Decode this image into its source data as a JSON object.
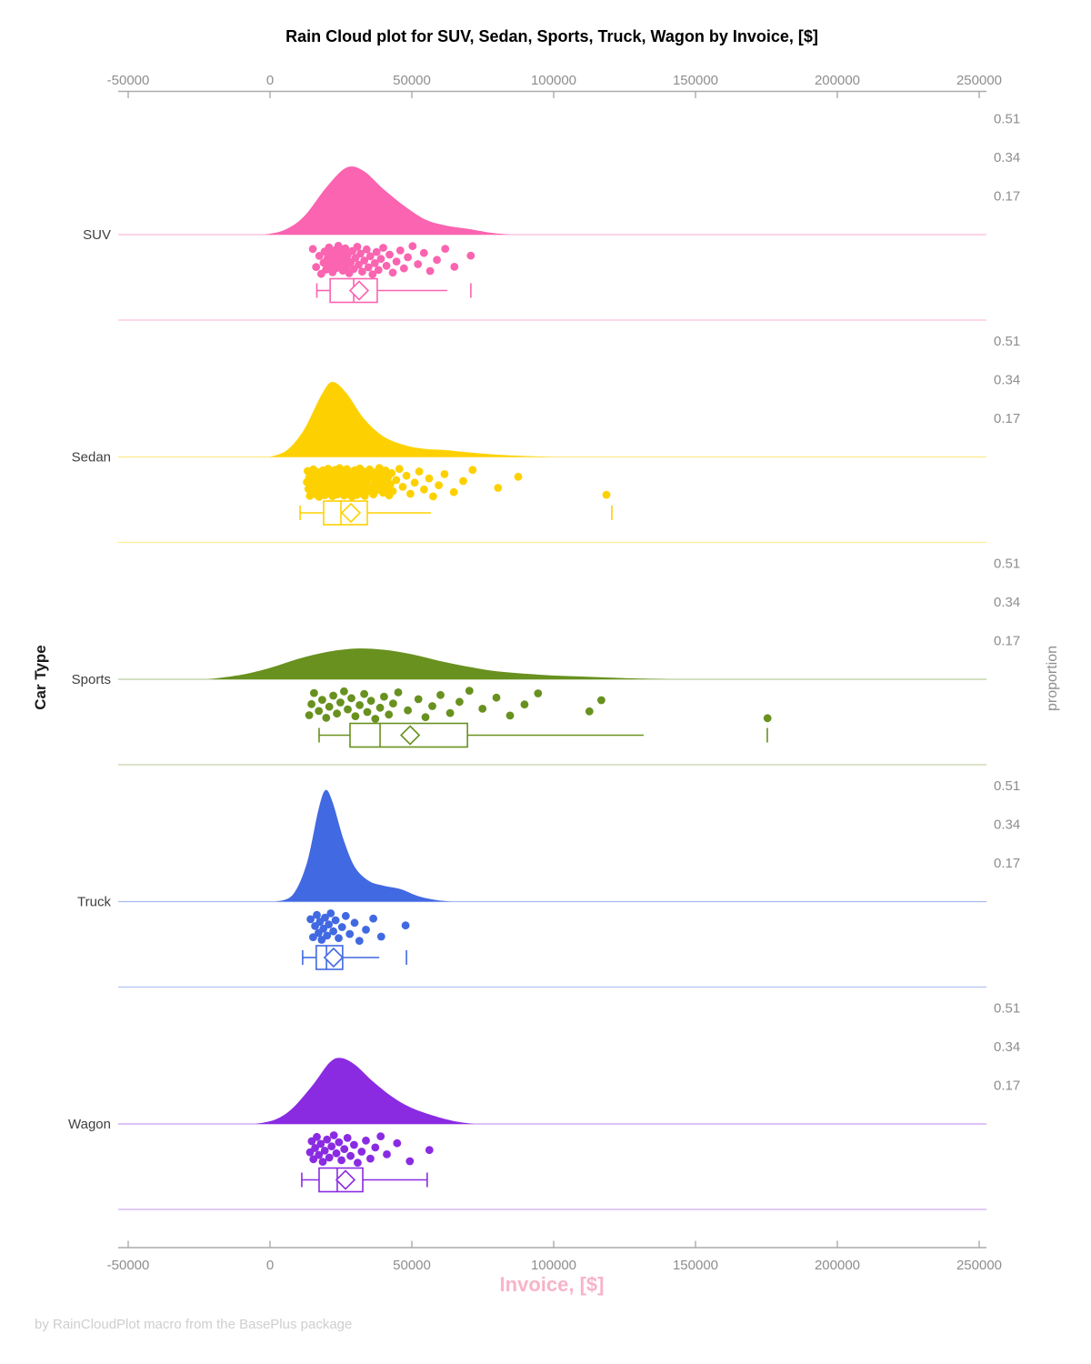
{
  "title": "Rain Cloud plot for SUV, Sedan, Sports, Truck, Wagon by Invoice, [$]",
  "credit": "by RainCloudPlot macro from the BasePlus package",
  "x_axis": {
    "label": "Invoice, [$]",
    "ticks": [
      -50000,
      0,
      50000,
      100000,
      150000,
      200000,
      250000
    ],
    "tick_labels": [
      "-50000",
      "0",
      "50000",
      "100000",
      "150000",
      "200000",
      "250000"
    ],
    "range": [
      -53500,
      252600
    ]
  },
  "y_axis_left": {
    "label": "Car Type",
    "categories": [
      "SUV",
      "Sedan",
      "Sports",
      "Truck",
      "Wagon"
    ]
  },
  "y_axis_right": {
    "label": "proportion",
    "ticks": [
      0.17,
      0.34,
      0.51
    ],
    "tick_labels": [
      "0.17",
      "0.34",
      "0.51"
    ]
  },
  "palette": {
    "axis_line": "#ababab",
    "tick_text": "#8e8e8e",
    "category_label_text": "#3f3f3f",
    "title_text": "#000000",
    "x_title_text": "#f8b3c8",
    "credit_text": "#cecece"
  },
  "chart_data": {
    "type": "raincloud",
    "orientation": "horizontal",
    "x_variable": "Invoice, [$]",
    "group_variable": "Car Type",
    "proportion_ticks": [
      0.17,
      0.34,
      0.51
    ],
    "series": [
      {
        "name": "SUV",
        "color": "#fa64b0",
        "density": [
          [
            -2000,
            0
          ],
          [
            5000,
            0.02
          ],
          [
            12000,
            0.08
          ],
          [
            20000,
            0.21
          ],
          [
            27000,
            0.295
          ],
          [
            33000,
            0.28
          ],
          [
            40000,
            0.2
          ],
          [
            48000,
            0.12
          ],
          [
            55000,
            0.065
          ],
          [
            62000,
            0.04
          ],
          [
            70000,
            0.025
          ],
          [
            78000,
            0.008
          ],
          [
            85000,
            0
          ]
        ],
        "points": [
          15085,
          16245,
          17357,
          18035,
          18890,
          19235,
          19755,
          20255,
          20815,
          21175,
          21575,
          22045,
          22575,
          23215,
          23515,
          23845,
          24095,
          24555,
          25085,
          25672,
          26155,
          26545,
          26985,
          27345,
          27905,
          28455,
          29045,
          29535,
          30125,
          30755,
          31245,
          31895,
          32505,
          33245,
          34055,
          34725,
          35345,
          36145,
          36945,
          37575,
          38245,
          39080,
          39905,
          41045,
          42135,
          43255,
          44595,
          45935,
          47205,
          48595,
          50255,
          52155,
          54255,
          56455,
          58855,
          61755,
          64995,
          70755
        ],
        "box": {
          "whisker_low": 16500,
          "q1": 21200,
          "median": 29500,
          "mean": 31400,
          "q3": 37800,
          "whisker_high": 62500,
          "far_tick": 70800,
          "high_cap": false
        }
      },
      {
        "name": "Sedan",
        "color": "#fdd101",
        "density": [
          [
            0,
            0
          ],
          [
            6000,
            0.03
          ],
          [
            12000,
            0.12
          ],
          [
            18000,
            0.27
          ],
          [
            22000,
            0.33
          ],
          [
            27000,
            0.28
          ],
          [
            33000,
            0.17
          ],
          [
            40000,
            0.09
          ],
          [
            48000,
            0.05
          ],
          [
            55000,
            0.035
          ],
          [
            62000,
            0.03
          ],
          [
            70000,
            0.02
          ],
          [
            80000,
            0.01
          ],
          [
            90000,
            0.004
          ],
          [
            100000,
            0
          ]
        ],
        "points": [
          13024,
          13276,
          13529,
          13781,
          14034,
          14286,
          14539,
          14791,
          15044,
          15296,
          15549,
          15801,
          16054,
          16306,
          16559,
          16811,
          17064,
          17316,
          17569,
          17821,
          18074,
          18326,
          18579,
          18831,
          19084,
          19336,
          19589,
          19841,
          20094,
          20287,
          20481,
          20674,
          20868,
          21061,
          21255,
          21448,
          21642,
          21835,
          22029,
          22222,
          22416,
          22609,
          22803,
          22996,
          23190,
          23383,
          23577,
          23770,
          23964,
          24157,
          24351,
          24544,
          24738,
          24931,
          25125,
          25318,
          25512,
          25705,
          25899,
          26092,
          26286,
          26479,
          26673,
          26866,
          27060,
          27253,
          27447,
          27640,
          28034,
          28248,
          28463,
          28677,
          28892,
          29106,
          29321,
          29535,
          29750,
          29964,
          30179,
          30393,
          30608,
          30822,
          31037,
          31251,
          31466,
          31680,
          31895,
          32109,
          32324,
          32538,
          32753,
          32967,
          33182,
          33396,
          33611,
          33825,
          34040,
          34254,
          35142,
          35571,
          36000,
          36428,
          36857,
          37285,
          37714,
          38142,
          38571,
          38999,
          39428,
          39856,
          40285,
          40713,
          41142,
          41570,
          41999,
          42427,
          42856,
          43284,
          44500,
          45600,
          46800,
          48100,
          49500,
          51000,
          52600,
          54300,
          56100,
          57500,
          59500,
          61500,
          64800,
          68100,
          71400,
          80400,
          87500,
          118600
        ],
        "box": {
          "whisker_low": 10600,
          "q1": 18900,
          "median": 25000,
          "mean": 28500,
          "q3": 34300,
          "whisker_high": 56700,
          "far_tick": 120500,
          "high_cap": false
        }
      },
      {
        "name": "Sports",
        "color": "#68911f",
        "density": [
          [
            -22000,
            0
          ],
          [
            -10000,
            0.02
          ],
          [
            0,
            0.05
          ],
          [
            10000,
            0.09
          ],
          [
            20000,
            0.12
          ],
          [
            30000,
            0.135
          ],
          [
            40000,
            0.13
          ],
          [
            50000,
            0.11
          ],
          [
            60000,
            0.08
          ],
          [
            70000,
            0.055
          ],
          [
            80000,
            0.035
          ],
          [
            95000,
            0.02
          ],
          [
            110000,
            0.012
          ],
          [
            125000,
            0.005
          ],
          [
            140000,
            0
          ]
        ],
        "points": [
          13800,
          14600,
          15500,
          17200,
          18400,
          19800,
          20900,
          22300,
          23600,
          24800,
          26100,
          27400,
          28700,
          30100,
          31600,
          33200,
          34300,
          35600,
          37100,
          38800,
          40200,
          41900,
          43400,
          45200,
          48600,
          52300,
          54800,
          57200,
          60100,
          63500,
          66800,
          70300,
          74900,
          79800,
          84600,
          89700,
          94500,
          112600,
          116800,
          175400
        ],
        "box": {
          "whisker_low": 17300,
          "q1": 28200,
          "median": 38800,
          "mean": 49400,
          "q3": 69600,
          "whisker_high": 131700,
          "far_tick": 175300,
          "high_cap": false
        }
      },
      {
        "name": "Truck",
        "color": "#4169e1",
        "density": [
          [
            2000,
            0
          ],
          [
            8000,
            0.03
          ],
          [
            13000,
            0.17
          ],
          [
            17000,
            0.4
          ],
          [
            19500,
            0.49
          ],
          [
            22000,
            0.44
          ],
          [
            26000,
            0.27
          ],
          [
            30000,
            0.15
          ],
          [
            35000,
            0.09
          ],
          [
            40000,
            0.07
          ],
          [
            46000,
            0.055
          ],
          [
            52000,
            0.025
          ],
          [
            58000,
            0.008
          ],
          [
            64000,
            0
          ]
        ],
        "points": [
          14300,
          15200,
          15900,
          16500,
          17100,
          17600,
          18200,
          18800,
          19400,
          20100,
          20700,
          21400,
          22300,
          23100,
          24200,
          25400,
          26700,
          28100,
          29800,
          31500,
          33800,
          36400,
          39200,
          47800
        ],
        "box": {
          "whisker_low": 11500,
          "q1": 16300,
          "median": 19900,
          "mean": 22400,
          "q3": 25600,
          "whisker_high": 38500,
          "far_tick": 48100,
          "high_cap": false
        }
      },
      {
        "name": "Wagon",
        "color": "#8a2be2",
        "density": [
          [
            -5000,
            0
          ],
          [
            2000,
            0.02
          ],
          [
            8000,
            0.07
          ],
          [
            15000,
            0.17
          ],
          [
            21000,
            0.27
          ],
          [
            25000,
            0.29
          ],
          [
            30000,
            0.26
          ],
          [
            36000,
            0.19
          ],
          [
            43000,
            0.12
          ],
          [
            50000,
            0.07
          ],
          [
            58000,
            0.035
          ],
          [
            65000,
            0.012
          ],
          [
            72000,
            0
          ]
        ],
        "points": [
          14100,
          14700,
          15300,
          15900,
          16500,
          17200,
          17900,
          18600,
          19300,
          20100,
          20900,
          21700,
          22500,
          23400,
          24300,
          25200,
          26200,
          27300,
          28400,
          29600,
          30900,
          32300,
          33800,
          35400,
          37100,
          39000,
          41200,
          44800,
          49300,
          56200
        ],
        "box": {
          "whisker_low": 11200,
          "q1": 17300,
          "median": 23700,
          "mean": 26600,
          "q3": 32700,
          "whisker_high": 55400,
          "far_tick": null,
          "high_cap": true
        }
      }
    ]
  }
}
